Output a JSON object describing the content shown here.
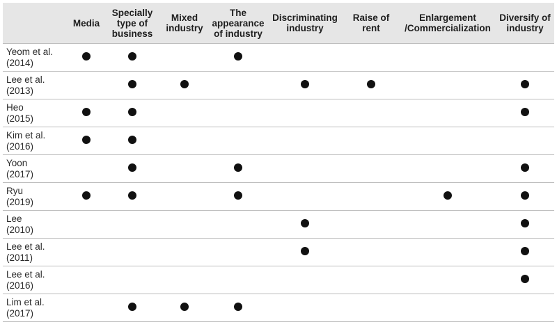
{
  "table": {
    "columns": [
      "",
      "Media",
      "Specially type of business",
      "Mixed industry",
      "The appearance of industry",
      "Discriminating industry",
      "Raise of rent",
      "Enlargement /Commercialization",
      "Diversify of industry"
    ],
    "column_lines": [
      [
        ""
      ],
      [
        "Media"
      ],
      [
        "Specially",
        "type of",
        "business"
      ],
      [
        "Mixed",
        "industry"
      ],
      [
        "The",
        "appearance",
        "of industry"
      ],
      [
        "Discriminating",
        "industry"
      ],
      [
        "Raise of",
        "rent"
      ],
      [
        "Enlargement",
        "/Commercialization"
      ],
      [
        "Diversify of",
        "industry"
      ]
    ],
    "rows": [
      {
        "study": [
          "Yeom et al.",
          "(2014)"
        ],
        "marks": [
          true,
          true,
          false,
          true,
          false,
          false,
          false,
          false
        ]
      },
      {
        "study": [
          "Lee et al.",
          "(2013)"
        ],
        "marks": [
          false,
          true,
          true,
          false,
          true,
          true,
          false,
          true
        ]
      },
      {
        "study": [
          "Heo",
          "(2015)"
        ],
        "marks": [
          true,
          true,
          false,
          false,
          false,
          false,
          false,
          true
        ]
      },
      {
        "study": [
          "Kim et al.",
          "(2016)"
        ],
        "marks": [
          true,
          true,
          false,
          false,
          false,
          false,
          false,
          false
        ]
      },
      {
        "study": [
          "Yoon",
          "(2017)"
        ],
        "marks": [
          false,
          true,
          false,
          true,
          false,
          false,
          false,
          true
        ]
      },
      {
        "study": [
          "Ryu",
          "(2019)"
        ],
        "marks": [
          true,
          true,
          false,
          true,
          false,
          false,
          true,
          true
        ]
      },
      {
        "study": [
          "Lee",
          "(2010)"
        ],
        "marks": [
          false,
          false,
          false,
          false,
          true,
          false,
          false,
          true
        ]
      },
      {
        "study": [
          "Lee et al.",
          "(2011)"
        ],
        "marks": [
          false,
          false,
          false,
          false,
          true,
          false,
          false,
          true
        ]
      },
      {
        "study": [
          "Lee et al.",
          "(2016)"
        ],
        "marks": [
          false,
          false,
          false,
          false,
          false,
          false,
          false,
          true
        ]
      },
      {
        "study": [
          "Lim et al.",
          "(2017)"
        ],
        "marks": [
          false,
          true,
          true,
          true,
          false,
          false,
          false,
          false
        ]
      }
    ]
  }
}
